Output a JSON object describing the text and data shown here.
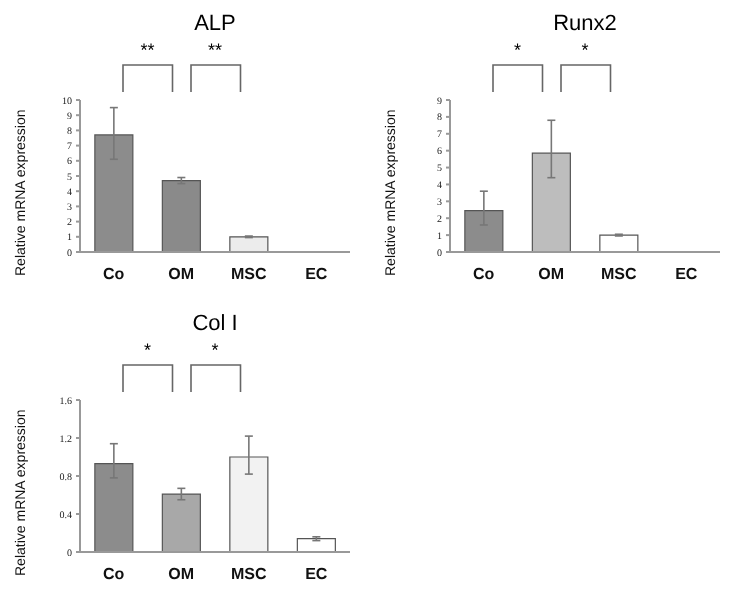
{
  "chart_data": [
    {
      "type": "bar",
      "title": "ALP",
      "ylabel": "Relative mRNA expression",
      "categories": [
        "Co",
        "OM",
        "MSC",
        "EC"
      ],
      "values": [
        7.7,
        4.7,
        1.0,
        null
      ],
      "colors": [
        "#8c8c8c",
        "#8a8a8a",
        "#ececec",
        "#ffffff"
      ],
      "errors": [
        [
          6.1,
          9.5
        ],
        [
          4.5,
          4.9
        ],
        [
          0.95,
          1.05
        ],
        null
      ],
      "ylim": [
        0,
        10
      ],
      "yticks": [
        0,
        1,
        2,
        3,
        4,
        5,
        6,
        7,
        8,
        9,
        10
      ],
      "annotations": [
        "**",
        "**"
      ]
    },
    {
      "type": "bar",
      "title": "Runx2",
      "ylabel": "Relative mRNA expression",
      "categories": [
        "Co",
        "OM",
        "MSC",
        "EC"
      ],
      "values": [
        2.45,
        5.85,
        1.0,
        null
      ],
      "colors": [
        "#8c8c8c",
        "#bdbdbd",
        "#ffffff",
        "#ffffff"
      ],
      "errors": [
        [
          1.6,
          3.6
        ],
        [
          4.4,
          7.8
        ],
        [
          0.95,
          1.05
        ],
        null
      ],
      "ylim": [
        0,
        9
      ],
      "yticks": [
        0,
        1,
        2,
        3,
        4,
        5,
        6,
        7,
        8,
        9
      ],
      "annotations": [
        "*",
        "*"
      ]
    },
    {
      "type": "bar",
      "title": "Col I",
      "ylabel": "Relative mRNA expression",
      "categories": [
        "Co",
        "OM",
        "MSC",
        "EC"
      ],
      "values": [
        0.93,
        0.61,
        1.0,
        0.14
      ],
      "colors": [
        "#8c8c8c",
        "#a8a8a8",
        "#f2f2f2",
        "#ffffff"
      ],
      "errors": [
        [
          0.78,
          1.14
        ],
        [
          0.55,
          0.67
        ],
        [
          0.82,
          1.22
        ],
        [
          0.12,
          0.16
        ]
      ],
      "ylim": [
        0,
        1.6
      ],
      "yticks": [
        0,
        0.4,
        0.8,
        1.2,
        1.6
      ],
      "annotations": [
        "*",
        "*"
      ]
    }
  ]
}
